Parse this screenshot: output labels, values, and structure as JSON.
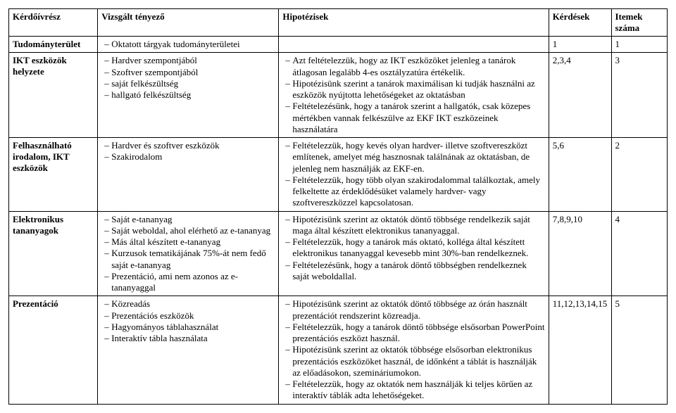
{
  "headers": {
    "c1": "Kérdőívrész",
    "c2": "Vizsgált tényező",
    "c3": "Hipotézisek",
    "c4": "Kérdések",
    "c5": "Itemek száma"
  },
  "rows": [
    {
      "c1": "Tudományterület",
      "c2_items": [
        "Oktatott tárgyak tudományterületei"
      ],
      "c3_items": [],
      "c4": "1",
      "c5": "1"
    },
    {
      "c1": "IKT eszközök helyzete",
      "c2_items": [
        "Hardver szempontjából",
        "Szoftver szempontjából",
        "saját felkészültség",
        "hallgató felkészültség"
      ],
      "c3_items": [
        "Azt feltételezzük, hogy az IKT eszközöket jelenleg a tanárok átlagosan legalább 4-es osztályzatúra értékelik.",
        "Hipotézisünk szerint a tanárok maximálisan ki tudják használni az eszközök nyújtotta lehetőségeket az oktatásban",
        "Feltételezésünk, hogy a tanárok szerint a hallgatók, csak közepes mértékben vannak felkészülve az EKF IKT eszközeinek használatára"
      ],
      "c4": "2,3,4",
      "c5": "3"
    },
    {
      "c1": "Felhasználható irodalom, IKT eszközök",
      "c2_items": [
        "Hardver és szoftver eszközök",
        "Szakirodalom"
      ],
      "c3_items": [
        "Feltételezzük, hogy kevés olyan hardver- illetve szoftvereszközt említenek, amelyet még hasznosnak találnának az oktatásban, de jelenleg nem használják az EKF-en.",
        "Feltételezzük, hogy több olyan szakirodalommal találkoztak, amely felkeltette az érdeklődésüket valamely hardver- vagy szoftvereszközzel kapcsolatosan."
      ],
      "c4": "5,6",
      "c5": "2"
    },
    {
      "c1": "Elektronikus tananyagok",
      "c2_items": [
        "Saját e-tananyag",
        "Saját weboldal, ahol elérhető az e-tananyag",
        "Más által készített e-tananyag",
        "Kurzusok tematikájának 75%-át nem fedő saját e-tananyag",
        "Prezentáció, ami nem azonos az e-tananyaggal"
      ],
      "c3_items": [
        "Hipotézisünk szerint az oktatók döntő többsége rendelkezik saját maga által készített elektronikus tananyaggal.",
        "Feltételezzük, hogy a tanárok más oktató, kolléga által készített elektronikus tananyaggal kevesebb mint 30%-ban rendelkeznek.",
        "Feltételezésünk, hogy a tanárok döntő többségben rendelkeznek saját weboldallal."
      ],
      "c4": "7,8,9,10",
      "c5": "4"
    },
    {
      "c1": "Prezentáció",
      "c2_items": [
        "Közreadás",
        "Prezentációs eszközök",
        "Hagyományos táblahasználat",
        "Interaktív tábla használata"
      ],
      "c3_items": [
        "Hipotézisünk szerint az oktatók döntő többsége az órán használt prezentációt rendszerint közreadja.",
        "Feltételezzük, hogy a tanárok döntő többsége elsősorban PowerPoint prezentációs eszközt használ.",
        "Hipotézisünk szerint az oktatók többsége elsősorban elektronikus prezentációs eszközöket használ, de időnként a táblát is használják az előadásokon, szemináriumokon.",
        "Feltételezzük, hogy az oktatók nem használják ki teljes körűen az interaktív táblák adta lehetőségeket."
      ],
      "c4": "11,12,13,14,15",
      "c5": "5"
    }
  ]
}
